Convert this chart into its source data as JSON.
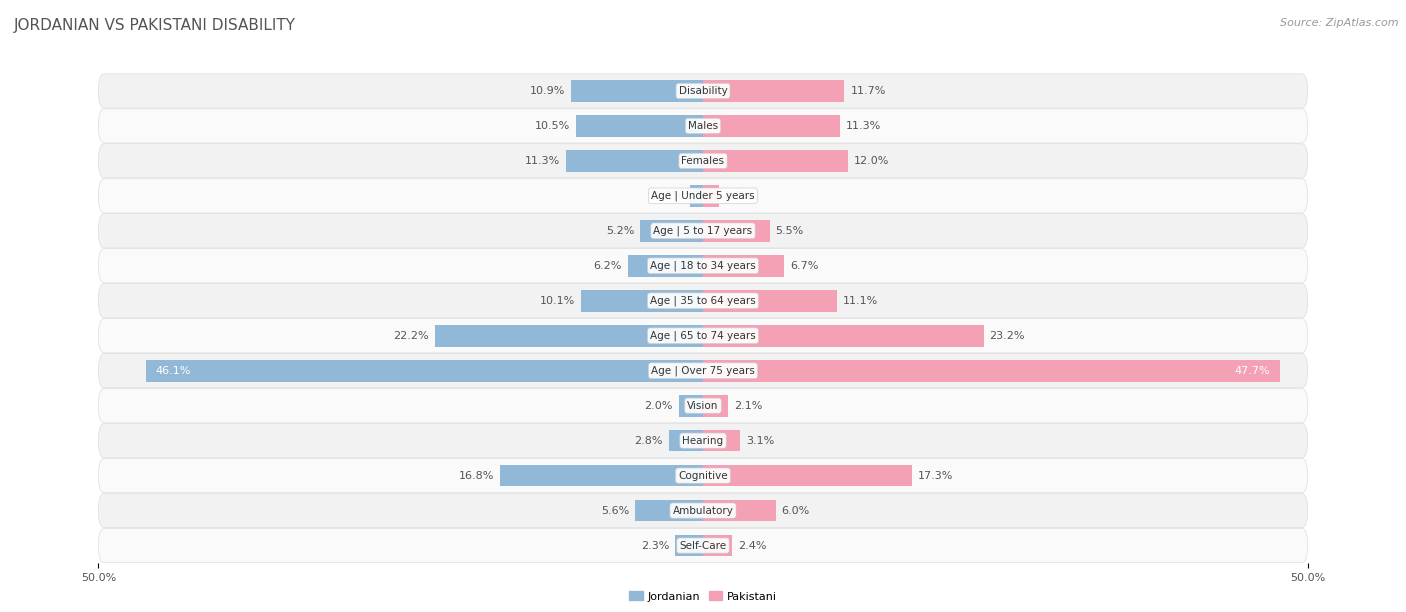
{
  "title": "JORDANIAN VS PAKISTANI DISABILITY",
  "source": "Source: ZipAtlas.com",
  "categories": [
    "Disability",
    "Males",
    "Females",
    "Age | Under 5 years",
    "Age | 5 to 17 years",
    "Age | 18 to 34 years",
    "Age | 35 to 64 years",
    "Age | 65 to 74 years",
    "Age | Over 75 years",
    "Vision",
    "Hearing",
    "Cognitive",
    "Ambulatory",
    "Self-Care"
  ],
  "jordanian": [
    10.9,
    10.5,
    11.3,
    1.1,
    5.2,
    6.2,
    10.1,
    22.2,
    46.1,
    2.0,
    2.8,
    16.8,
    5.6,
    2.3
  ],
  "pakistani": [
    11.7,
    11.3,
    12.0,
    1.3,
    5.5,
    6.7,
    11.1,
    23.2,
    47.7,
    2.1,
    3.1,
    17.3,
    6.0,
    2.4
  ],
  "jordanian_color": "#92b8d8",
  "pakistani_color": "#f4a0b5",
  "row_colors": [
    "#f2f2f2",
    "#fafafa"
  ],
  "row_border_color": "#dddddd",
  "background_color": "#ffffff",
  "xlim": 50.0,
  "bar_height": 0.62,
  "title_fontsize": 11,
  "label_fontsize": 8,
  "tick_fontsize": 8,
  "source_fontsize": 8,
  "value_color_dark": "#555555",
  "value_color_white": "#ffffff",
  "cat_label_fontsize": 7.5
}
